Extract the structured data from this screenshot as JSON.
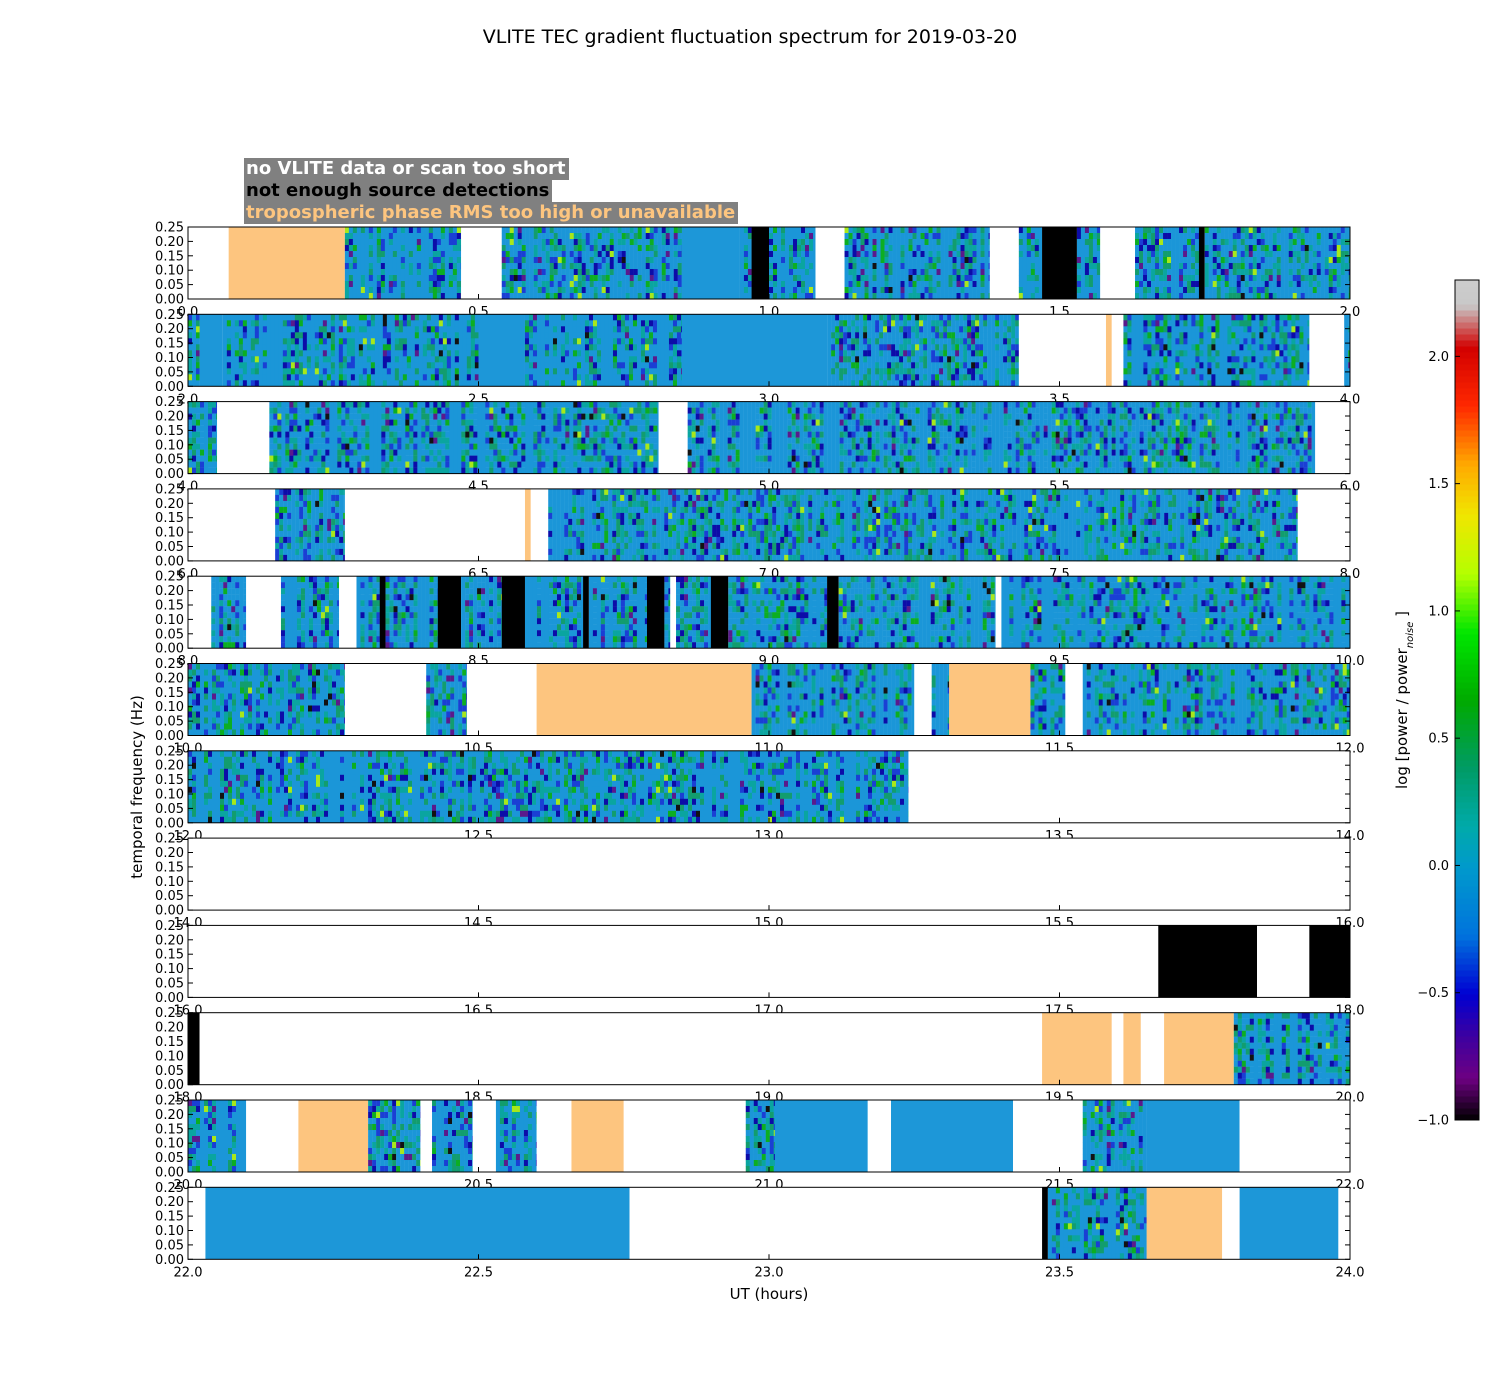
{
  "chart_data": {
    "type": "heatmap",
    "title": "VLITE TEC gradient fluctuation spectrum for 2019-03-20",
    "xlabel": "UT (hours)",
    "ylabel": "temporal frequency (Hz)",
    "y_ticks": [
      "0.00",
      "0.05",
      "0.10",
      "0.15",
      "0.20",
      "0.25"
    ],
    "ylim": [
      0,
      0.25
    ],
    "colorbar": {
      "label": "log [power / power",
      "label_sub": "noise",
      "label_end": "]",
      "range": [
        -1.0,
        2.3
      ],
      "ticks": [
        "−1.0",
        "−0.5",
        "0.0",
        "0.5",
        "1.0",
        "1.5",
        "2.0"
      ],
      "tick_values": [
        -1.0,
        -0.5,
        0.0,
        0.5,
        1.0,
        1.5,
        2.0
      ],
      "colormap": "nipy_spectral"
    },
    "legend": [
      {
        "text": "no VLITE data or scan too short",
        "color": "#ffffff",
        "category": "nodata"
      },
      {
        "text": "not enough source detections",
        "color": "#000000",
        "category": "nodet"
      },
      {
        "text": "tropospheric phase RMS too high or unavailable",
        "color": "#fdc57f",
        "category": "trop"
      }
    ],
    "category_colors": {
      "nodata": "#ffffff",
      "nodet": "#000000",
      "trop": "#fdc57f",
      "quiet": "#1d97d8"
    },
    "rows": [
      {
        "range": [
          0,
          2
        ],
        "ticks": [
          "0.0",
          "0.5",
          "1.0",
          "1.5",
          "2.0"
        ],
        "segments": [
          [
            "nodata",
            0,
            0.07
          ],
          [
            "trop",
            0.07,
            0.27
          ],
          [
            "data",
            0.27,
            0.47
          ],
          [
            "nodata",
            0.47,
            0.54
          ],
          [
            "data",
            0.54,
            0.85
          ],
          [
            "quiet",
            0.85,
            0.95
          ],
          [
            "data",
            0.95,
            0.97
          ],
          [
            "nodet",
            0.97,
            1.0
          ],
          [
            "data",
            1.0,
            1.08
          ],
          [
            "nodata",
            1.08,
            1.13
          ],
          [
            "data",
            1.13,
            1.38
          ],
          [
            "nodata",
            1.38,
            1.43
          ],
          [
            "data",
            1.43,
            1.47
          ],
          [
            "nodet",
            1.47,
            1.53
          ],
          [
            "data",
            1.53,
            1.57
          ],
          [
            "nodata",
            1.57,
            1.63
          ],
          [
            "data",
            1.63,
            1.74
          ],
          [
            "nodet",
            1.74,
            1.75
          ],
          [
            "data",
            1.75,
            2.0
          ]
        ]
      },
      {
        "range": [
          2,
          4
        ],
        "ticks": [
          "2.0",
          "2.5",
          "3.0",
          "3.5",
          "4.0"
        ],
        "segments": [
          [
            "data",
            2.0,
            2.02
          ],
          [
            "quiet",
            2.02,
            2.06
          ],
          [
            "data",
            2.06,
            2.5
          ],
          [
            "quiet",
            2.5,
            2.58
          ],
          [
            "data",
            2.58,
            2.85
          ],
          [
            "quiet",
            2.85,
            3.1
          ],
          [
            "data",
            3.1,
            3.43
          ],
          [
            "nodata",
            3.43,
            3.58
          ],
          [
            "trop",
            3.58,
            3.59
          ],
          [
            "nodata",
            3.59,
            3.61
          ],
          [
            "data",
            3.61,
            3.93
          ],
          [
            "nodata",
            3.93,
            3.99
          ],
          [
            "data",
            3.99,
            4.0
          ]
        ]
      },
      {
        "range": [
          4,
          6
        ],
        "ticks": [
          "4.0",
          "4.5",
          "5.0",
          "5.5",
          "6.0"
        ],
        "segments": [
          [
            "data",
            4.0,
            4.05
          ],
          [
            "nodata",
            4.05,
            4.14
          ],
          [
            "data",
            4.14,
            4.81
          ],
          [
            "nodata",
            4.81,
            4.86
          ],
          [
            "data",
            4.86,
            5.94
          ],
          [
            "nodata",
            5.94,
            6.0
          ]
        ]
      },
      {
        "range": [
          6,
          8
        ],
        "ticks": [
          "6.0",
          "6.5",
          "7.0",
          "7.5",
          "8.0"
        ],
        "segments": [
          [
            "nodata",
            6.0,
            6.15
          ],
          [
            "data",
            6.15,
            6.27
          ],
          [
            "nodata",
            6.27,
            6.58
          ],
          [
            "trop",
            6.58,
            6.59
          ],
          [
            "nodata",
            6.59,
            6.62
          ],
          [
            "data",
            6.62,
            7.91
          ],
          [
            "nodata",
            7.91,
            8.0
          ]
        ]
      },
      {
        "range": [
          8,
          10
        ],
        "ticks": [
          "8.0",
          "8.5",
          "9.0",
          "9.5",
          "10.0"
        ],
        "segments": [
          [
            "nodata",
            8.0,
            8.04
          ],
          [
            "data",
            8.04,
            8.1
          ],
          [
            "nodata",
            8.1,
            8.16
          ],
          [
            "data",
            8.16,
            8.26
          ],
          [
            "nodata",
            8.26,
            8.29
          ],
          [
            "data",
            8.29,
            8.33
          ],
          [
            "nodet",
            8.33,
            8.34
          ],
          [
            "data",
            8.34,
            8.43
          ],
          [
            "nodet",
            8.43,
            8.47
          ],
          [
            "data",
            8.47,
            8.54
          ],
          [
            "nodet",
            8.54,
            8.58
          ],
          [
            "data",
            8.58,
            8.68
          ],
          [
            "nodet",
            8.68,
            8.69
          ],
          [
            "data",
            8.69,
            8.79
          ],
          [
            "nodet",
            8.79,
            8.82
          ],
          [
            "data",
            8.82,
            8.83
          ],
          [
            "nodata",
            8.83,
            8.84
          ],
          [
            "data",
            8.84,
            8.9
          ],
          [
            "nodet",
            8.9,
            8.93
          ],
          [
            "data",
            8.93,
            9.1
          ],
          [
            "nodet",
            9.1,
            9.12
          ],
          [
            "data",
            9.12,
            9.39
          ],
          [
            "nodata",
            9.39,
            9.4
          ],
          [
            "data",
            9.4,
            10.0
          ]
        ]
      },
      {
        "range": [
          10,
          12
        ],
        "ticks": [
          "10.0",
          "10.5",
          "11.0",
          "11.5",
          "12.0"
        ],
        "segments": [
          [
            "data",
            10.0,
            10.27
          ],
          [
            "nodata",
            10.27,
            10.41
          ],
          [
            "data",
            10.41,
            10.48
          ],
          [
            "nodata",
            10.48,
            10.6
          ],
          [
            "trop",
            10.6,
            10.97
          ],
          [
            "data",
            10.97,
            11.25
          ],
          [
            "nodata",
            11.25,
            11.28
          ],
          [
            "data",
            11.28,
            11.31
          ],
          [
            "trop",
            11.31,
            11.45
          ],
          [
            "data",
            11.45,
            11.51
          ],
          [
            "nodata",
            11.51,
            11.54
          ],
          [
            "data",
            11.54,
            12.0
          ]
        ]
      },
      {
        "range": [
          12,
          14
        ],
        "ticks": [
          "12.0",
          "12.5",
          "13.0",
          "13.5",
          "14.0"
        ],
        "segments": [
          [
            "data",
            12.0,
            13.24
          ],
          [
            "nodata",
            13.24,
            14.0
          ]
        ]
      },
      {
        "range": [
          14,
          16
        ],
        "ticks": [
          "14.0",
          "14.5",
          "15.0",
          "15.5",
          "16.0"
        ],
        "segments": [
          [
            "nodata",
            14.0,
            16.0
          ]
        ]
      },
      {
        "range": [
          16,
          18
        ],
        "ticks": [
          "16.0",
          "16.5",
          "17.0",
          "17.5",
          "18.0"
        ],
        "segments": [
          [
            "nodata",
            16.0,
            17.67
          ],
          [
            "nodet",
            17.67,
            17.84
          ],
          [
            "nodata",
            17.84,
            17.93
          ],
          [
            "nodet",
            17.93,
            18.0
          ]
        ]
      },
      {
        "range": [
          18,
          20
        ],
        "ticks": [
          "18.0",
          "18.5",
          "19.0",
          "19.5",
          "20.0"
        ],
        "segments": [
          [
            "nodet",
            18.0,
            18.02
          ],
          [
            "nodata",
            18.02,
            19.47
          ],
          [
            "trop",
            19.47,
            19.59
          ],
          [
            "nodata",
            19.59,
            19.61
          ],
          [
            "trop",
            19.61,
            19.64
          ],
          [
            "nodata",
            19.64,
            19.68
          ],
          [
            "trop",
            19.68,
            19.8
          ],
          [
            "data",
            19.8,
            20.0
          ]
        ]
      },
      {
        "range": [
          20,
          22
        ],
        "ticks": [
          "20.0",
          "20.5",
          "21.0",
          "21.5",
          "22.0"
        ],
        "segments": [
          [
            "data",
            20.0,
            20.1
          ],
          [
            "nodata",
            20.1,
            20.19
          ],
          [
            "trop",
            20.19,
            20.31
          ],
          [
            "data",
            20.31,
            20.4
          ],
          [
            "nodata",
            20.4,
            20.42
          ],
          [
            "data",
            20.42,
            20.49
          ],
          [
            "nodata",
            20.49,
            20.53
          ],
          [
            "data",
            20.53,
            20.6
          ],
          [
            "nodata",
            20.6,
            20.66
          ],
          [
            "trop",
            20.66,
            20.75
          ],
          [
            "nodata",
            20.75,
            20.96
          ],
          [
            "data",
            20.96,
            21.01
          ],
          [
            "quiet",
            21.01,
            21.17
          ],
          [
            "nodata",
            21.17,
            21.21
          ],
          [
            "quiet",
            21.21,
            21.42
          ],
          [
            "nodata",
            21.42,
            21.54
          ],
          [
            "data",
            21.54,
            21.65
          ],
          [
            "quiet",
            21.65,
            21.81
          ],
          [
            "nodata",
            21.81,
            22.0
          ]
        ]
      },
      {
        "range": [
          22,
          24
        ],
        "ticks": [
          "22.0",
          "22.5",
          "23.0",
          "23.5",
          "24.0"
        ],
        "segments": [
          [
            "nodata",
            22.0,
            22.03
          ],
          [
            "quiet",
            22.03,
            22.76
          ],
          [
            "nodata",
            22.76,
            23.47
          ],
          [
            "nodet",
            23.47,
            23.48
          ],
          [
            "data",
            23.48,
            23.65
          ],
          [
            "trop",
            23.65,
            23.78
          ],
          [
            "nodata",
            23.78,
            23.81
          ],
          [
            "quiet",
            23.81,
            23.98
          ],
          [
            "nodata",
            23.98,
            24.0
          ]
        ]
      }
    ]
  }
}
